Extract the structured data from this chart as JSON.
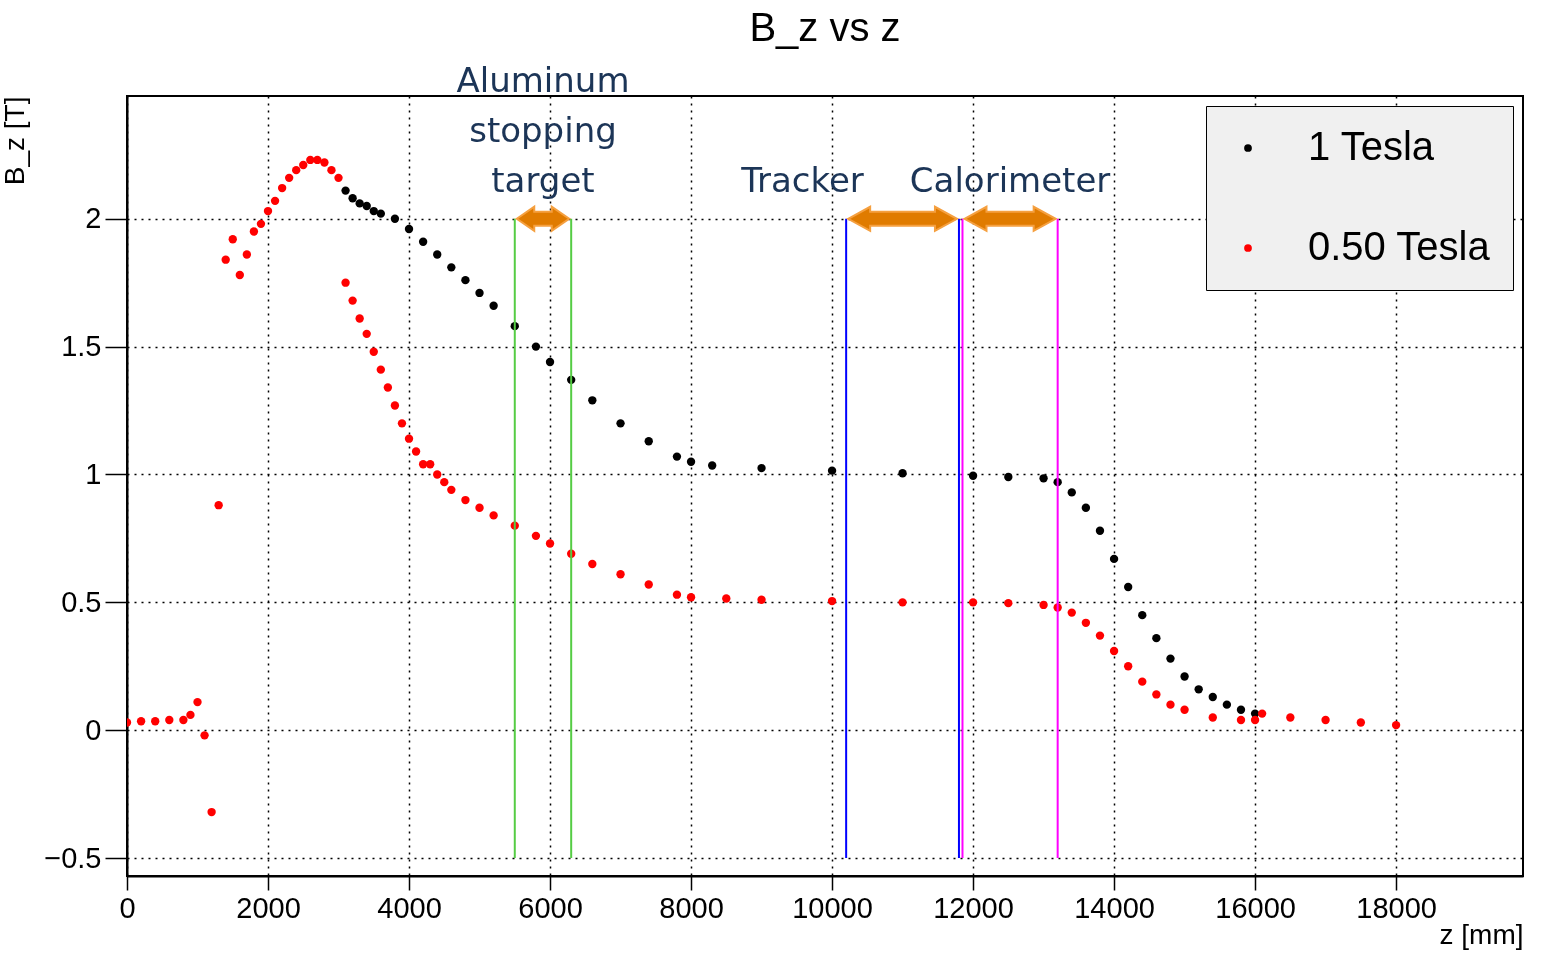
{
  "chart_data": {
    "type": "scatter",
    "title": "B_z vs z",
    "xlabel": "z [mm]",
    "ylabel": "B_z [T]",
    "xlim": [
      0,
      19800
    ],
    "ylim": [
      -0.57,
      2.48
    ],
    "xticks": [
      0,
      2000,
      4000,
      6000,
      8000,
      10000,
      12000,
      14000,
      16000,
      18000
    ],
    "yticks": [
      -0.5,
      0,
      0.5,
      1,
      1.5,
      2
    ],
    "grid": true,
    "legend": "top right",
    "marker": "circle",
    "series": [
      {
        "name": "1 Tesla",
        "color": "#000000",
        "x": [
          3100,
          3200,
          3300,
          3400,
          3500,
          3600,
          3800,
          4000,
          4200,
          4400,
          4600,
          4800,
          5000,
          5200,
          5500,
          5800,
          6000,
          6300,
          6600,
          7000,
          7400,
          7800,
          8000,
          8300,
          9000,
          10000,
          11000,
          12000,
          12500,
          13000,
          13200,
          13400,
          13600,
          13800,
          14000,
          14200,
          14400,
          14600,
          14800,
          15000,
          15200,
          15400,
          15600,
          15800,
          16000
        ],
        "values": [
          2.11,
          2.08,
          2.06,
          2.05,
          2.03,
          2.02,
          2.0,
          1.96,
          1.91,
          1.86,
          1.81,
          1.76,
          1.71,
          1.66,
          1.58,
          1.5,
          1.44,
          1.37,
          1.29,
          1.2,
          1.13,
          1.07,
          1.05,
          1.035,
          1.025,
          1.015,
          1.005,
          0.995,
          0.99,
          0.985,
          0.97,
          0.93,
          0.87,
          0.78,
          0.67,
          0.56,
          0.45,
          0.36,
          0.28,
          0.21,
          0.16,
          0.13,
          0.1,
          0.08,
          0.065
        ]
      },
      {
        "name": "0.50 Tesla",
        "color": "#ff0000",
        "x": [
          0,
          200,
          400,
          600,
          800,
          900,
          1000,
          1100,
          1200,
          1300,
          1400,
          1500,
          1600,
          1700,
          1800,
          1900,
          2000,
          2100,
          2200,
          2300,
          2400,
          2500,
          2600,
          2700,
          2800,
          2900,
          3000,
          3100,
          3200,
          3300,
          3400,
          3500,
          3600,
          3700,
          3800,
          3900,
          4000,
          4100,
          4200,
          4300,
          4400,
          4500,
          4600,
          4800,
          5000,
          5200,
          5500,
          5800,
          6000,
          6300,
          6600,
          7000,
          7400,
          7800,
          8000,
          8500,
          9000,
          10000,
          11000,
          12000,
          12500,
          13000,
          13200,
          13400,
          13600,
          13800,
          14000,
          14200,
          14400,
          14600,
          14800,
          15000,
          15400,
          15800,
          16000,
          16100,
          16500,
          17000,
          17500,
          18000
        ],
        "values": [
          0.03,
          0.035,
          0.035,
          0.04,
          0.04,
          0.06,
          0.11,
          -0.02,
          -0.32,
          0.88,
          1.84,
          1.92,
          1.78,
          1.86,
          1.95,
          1.98,
          2.03,
          2.07,
          2.12,
          2.16,
          2.19,
          2.21,
          2.23,
          2.23,
          2.22,
          2.19,
          2.16,
          1.75,
          1.68,
          1.61,
          1.55,
          1.48,
          1.41,
          1.34,
          1.27,
          1.2,
          1.14,
          1.09,
          1.04,
          1.04,
          1.0,
          0.97,
          0.94,
          0.9,
          0.87,
          0.84,
          0.8,
          0.76,
          0.73,
          0.69,
          0.65,
          0.61,
          0.57,
          0.53,
          0.52,
          0.515,
          0.51,
          0.505,
          0.5,
          0.5,
          0.497,
          0.49,
          0.48,
          0.46,
          0.42,
          0.37,
          0.31,
          0.25,
          0.19,
          0.14,
          0.1,
          0.08,
          0.05,
          0.04,
          0.04,
          0.065,
          0.05,
          0.04,
          0.03,
          0.02
        ]
      }
    ],
    "ref_lines": [
      {
        "axis": "x",
        "value": 5500,
        "color": "#55cc44"
      },
      {
        "axis": "x",
        "value": 6300,
        "color": "#55cc44"
      },
      {
        "axis": "x",
        "value": 10200,
        "color": "#0000ff"
      },
      {
        "axis": "x",
        "value": 11800,
        "color": "#0000ff"
      },
      {
        "axis": "x",
        "value": 11850,
        "color": "#ff00ff"
      },
      {
        "axis": "x",
        "value": 13200,
        "color": "#ff00ff"
      }
    ],
    "annotations": [
      "Aluminum\nstopping\ntarget",
      "Tracker",
      "Calorimeter"
    ]
  }
}
